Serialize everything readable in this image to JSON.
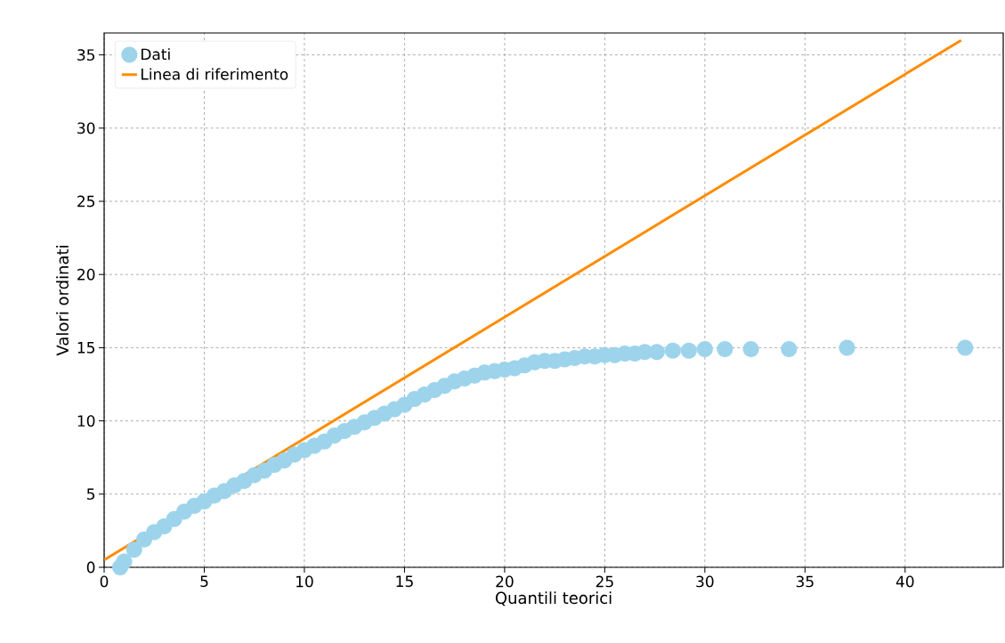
{
  "chart_data": {
    "type": "scatter",
    "xlabel": "Quantili teorici",
    "ylabel": "Valori ordinati",
    "xlim": [
      0,
      44.9
    ],
    "ylim": [
      0,
      36.5
    ],
    "xticks": [
      0,
      5,
      10,
      15,
      20,
      25,
      30,
      35,
      40
    ],
    "yticks": [
      0,
      5,
      10,
      15,
      20,
      25,
      30,
      35
    ],
    "grid": true,
    "legend": "top left",
    "series": [
      {
        "name": "Dati",
        "marker": "circle",
        "color": "#9dd4ec",
        "x": [
          0.8,
          1,
          1.5,
          2,
          2.5,
          3,
          3.5,
          4,
          4.5,
          5,
          5.5,
          6,
          6.5,
          7,
          7.5,
          8,
          8.5,
          9,
          9.5,
          10,
          10.5,
          11,
          11.5,
          12,
          12.5,
          13,
          13.5,
          14,
          14.5,
          15,
          15.5,
          16,
          16.5,
          17,
          17.5,
          18,
          18.5,
          19,
          19.5,
          20,
          20.5,
          21,
          21.5,
          22,
          22.5,
          23,
          23.5,
          24,
          24.5,
          25,
          25.5,
          26,
          26.5,
          27,
          27.6,
          28.4,
          29.2,
          30.0,
          31.0,
          32.3,
          34.2,
          37.1,
          43.0
        ],
        "values": [
          0,
          0.4,
          1.2,
          1.9,
          2.4,
          2.8,
          3.3,
          3.8,
          4.2,
          4.5,
          4.9,
          5.2,
          5.6,
          5.9,
          6.3,
          6.6,
          7.0,
          7.3,
          7.7,
          8.0,
          8.3,
          8.6,
          9.0,
          9.3,
          9.6,
          9.9,
          10.2,
          10.5,
          10.8,
          11.1,
          11.5,
          11.8,
          12.1,
          12.4,
          12.7,
          12.9,
          13.1,
          13.3,
          13.4,
          13.5,
          13.6,
          13.8,
          14.0,
          14.1,
          14.1,
          14.2,
          14.3,
          14.4,
          14.4,
          14.5,
          14.5,
          14.6,
          14.6,
          14.7,
          14.7,
          14.8,
          14.8,
          14.9,
          14.9,
          14.9,
          14.9,
          15.0,
          15.0
        ]
      },
      {
        "name": "Linea di riferimento",
        "type": "line",
        "marker": "none",
        "line_style": "solid",
        "color": "#ff8c00",
        "x": [
          0,
          42.8
        ],
        "values": [
          0.5,
          36
        ]
      }
    ]
  }
}
